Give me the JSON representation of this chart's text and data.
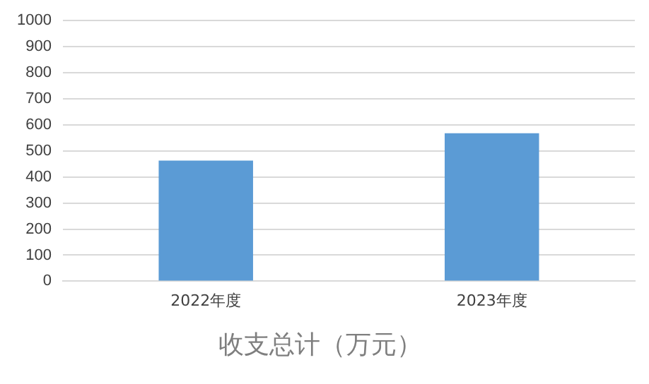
{
  "chart_data": {
    "type": "bar",
    "title": "收支总计（万元）",
    "categories": [
      "2022年度",
      "2023年度"
    ],
    "values": [
      463,
      568
    ],
    "color": "#5b9bd5",
    "ylim": [
      0,
      1000
    ],
    "yticks": [
      0,
      100,
      200,
      300,
      400,
      500,
      600,
      700,
      800,
      900,
      1000
    ],
    "grid": "y"
  }
}
